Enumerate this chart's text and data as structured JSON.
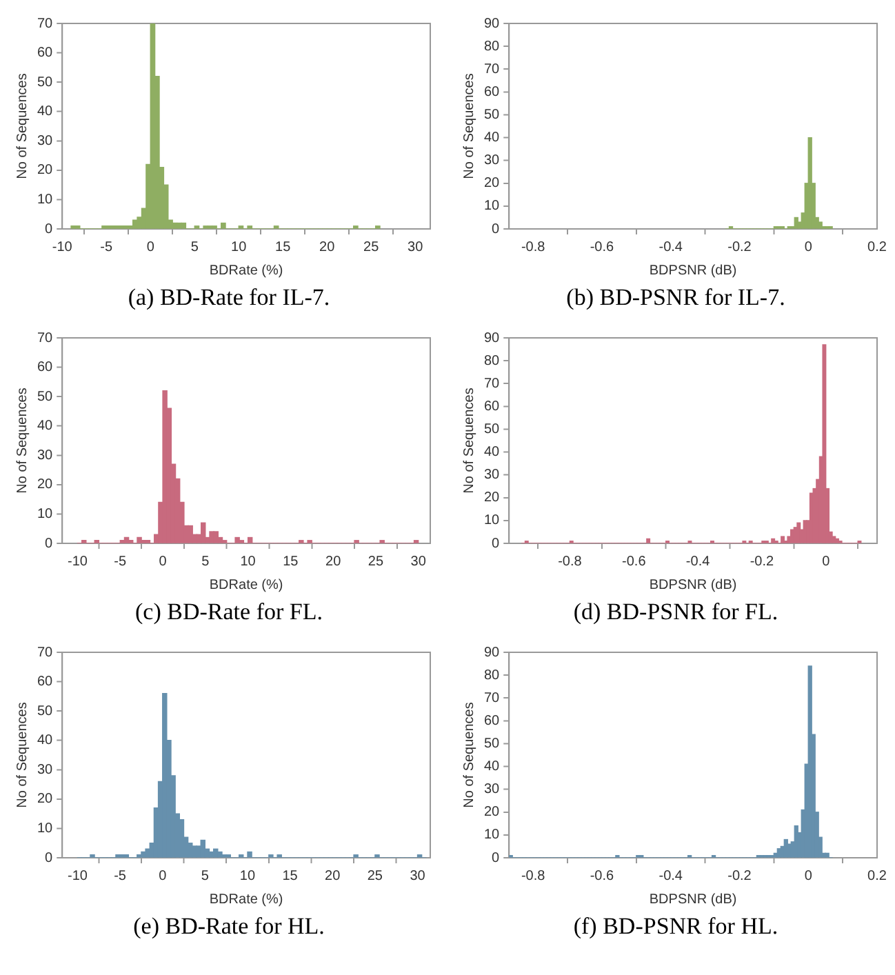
{
  "chart_data": [
    {
      "type": "histogram",
      "title": "(a) BD-Rate for IL-7.",
      "xlabel": "BDRate (%)",
      "ylabel": "No of Sequences",
      "color": "#8fae62",
      "grid": false,
      "xlim": [
        -10,
        31.7
      ],
      "xticks": [
        -10,
        -5,
        0,
        5,
        10,
        15,
        20,
        25,
        30
      ],
      "ylim": [
        0,
        70
      ],
      "yticks": [
        0,
        10,
        20,
        30,
        40,
        50,
        60,
        70
      ],
      "bins": [
        -9,
        -8.5,
        -8,
        -7.5,
        -7,
        -6.5,
        -6,
        -5.5,
        -5,
        -4.5,
        -4,
        -3.5,
        -3,
        -2.5,
        -2,
        -1.5,
        -1,
        -0.5,
        0,
        0.5,
        1,
        1.5,
        2,
        2.5,
        3,
        3.5,
        4,
        4.5,
        5,
        5.5,
        6,
        6.5,
        7,
        7.5,
        8,
        8.5,
        9,
        9.5,
        10,
        10.5,
        11,
        11.5,
        12,
        12.5,
        13,
        13.5,
        14,
        14.5,
        15,
        15.5,
        16,
        16.5,
        17,
        17.5,
        18,
        18.5,
        19,
        19.5,
        20,
        20.5,
        21,
        21.5,
        22,
        22.5,
        23,
        23.5,
        24,
        24.5,
        25,
        25.5,
        26
      ],
      "values": [
        1,
        1,
        0,
        0,
        0,
        0,
        0,
        1,
        1,
        1,
        1,
        1,
        1,
        1,
        3,
        4,
        7,
        22,
        70,
        52,
        21,
        15,
        3,
        2,
        2,
        2,
        0,
        0,
        1,
        0,
        1,
        1,
        1,
        0,
        2,
        0,
        0,
        0,
        1,
        0,
        1,
        0,
        0,
        0,
        0,
        0,
        1,
        0,
        0,
        0,
        0,
        0,
        0,
        0,
        0,
        0,
        0,
        0,
        0,
        0,
        0,
        0,
        0,
        0,
        1,
        0,
        0,
        0,
        0,
        1
      ]
    },
    {
      "type": "histogram",
      "title": "(b) BD-PSNR for IL-7.",
      "xlabel": "BDPSNR (dB)",
      "ylabel": "No of Sequences",
      "color": "#8fae62",
      "grid": false,
      "xlim": [
        -0.87,
        0.2
      ],
      "xticks": [
        -0.8,
        -0.6,
        -0.4,
        -0.2,
        0,
        0.2
      ],
      "ylim": [
        0,
        90
      ],
      "yticks": [
        0,
        10,
        20,
        30,
        40,
        50,
        60,
        70,
        80,
        90
      ],
      "bins": [
        -0.24,
        -0.23,
        -0.22,
        -0.21,
        -0.2,
        -0.19,
        -0.18,
        -0.17,
        -0.16,
        -0.15,
        -0.14,
        -0.13,
        -0.12,
        -0.11,
        -0.1,
        -0.09,
        -0.08,
        -0.07,
        -0.06,
        -0.05,
        -0.04,
        -0.03,
        -0.02,
        -0.01,
        0,
        0.01,
        0.02,
        0.03,
        0.04,
        0.05,
        0.06,
        0.07
      ],
      "values": [
        0,
        1,
        0,
        0,
        0,
        0,
        0,
        0,
        0,
        0,
        0,
        0,
        0,
        0,
        1,
        1,
        1,
        0,
        1,
        1,
        5,
        3,
        7,
        20,
        40,
        20,
        5,
        3,
        1,
        1,
        1
      ]
    },
    {
      "type": "histogram",
      "title": "(c) BD-Rate for FL.",
      "xlabel": "BDRate (%)",
      "ylabel": "No of Sequences",
      "color": "#c86a7e",
      "grid": false,
      "xlim": [
        -11.8,
        31.4
      ],
      "xticks": [
        -10,
        -5,
        0,
        5,
        10,
        15,
        20,
        25,
        30
      ],
      "ylim": [
        0,
        70
      ],
      "yticks": [
        0,
        10,
        20,
        30,
        40,
        50,
        60,
        70
      ],
      "bins": [
        -10,
        -9.5,
        -9,
        -8.5,
        -8,
        -7.5,
        -7,
        -6.5,
        -6,
        -5.5,
        -5,
        -4.5,
        -4,
        -3.5,
        -3,
        -2.5,
        -2,
        -1.5,
        -1,
        -0.5,
        0,
        0.5,
        1,
        1.5,
        2,
        2.5,
        3,
        3.5,
        4,
        4.5,
        5,
        5.5,
        6,
        6.5,
        7,
        7.5,
        8,
        8.5,
        9,
        9.5,
        10,
        10.5,
        11,
        11.5,
        12,
        12.5,
        13,
        13.5,
        14,
        14.5,
        15,
        15.5,
        16,
        16.5,
        17,
        17.5,
        18,
        18.5,
        19,
        19.5,
        20,
        20.5,
        21,
        21.5,
        22,
        22.5,
        23,
        23.5,
        24,
        24.5,
        25,
        25.5,
        26,
        26.5,
        27,
        27.5,
        28,
        28.5,
        29,
        29.5,
        30
      ],
      "values": [
        0,
        1,
        0,
        0,
        1,
        0,
        0,
        0,
        0,
        0,
        1,
        2,
        1,
        0,
        2,
        1,
        1,
        0,
        3,
        14,
        52,
        46,
        27,
        22,
        14,
        6,
        6,
        3,
        3,
        7,
        2,
        4,
        4,
        2,
        1,
        0,
        0,
        2,
        1,
        0,
        2,
        0,
        0,
        0,
        0,
        0,
        0,
        0,
        0,
        0,
        0,
        0,
        1,
        0,
        1,
        0,
        0,
        0,
        0,
        0,
        0,
        0,
        0,
        0,
        0,
        1,
        0,
        0,
        0,
        0,
        0,
        1,
        0,
        0,
        0,
        0,
        0,
        0,
        0,
        1
      ]
    },
    {
      "type": "histogram",
      "title": "(d) BD-PSNR for FL.",
      "xlabel": "BDPSNR (dB)",
      "ylabel": "No of Sequences",
      "color": "#c86a7e",
      "grid": false,
      "xlim": [
        -0.99,
        0.16
      ],
      "xticks": [
        -0.8,
        -0.6,
        -0.4,
        -0.2,
        0
      ],
      "ylim": [
        0,
        90
      ],
      "yticks": [
        0,
        10,
        20,
        30,
        40,
        50,
        60,
        70,
        80,
        90
      ],
      "bins": [
        -0.95,
        -0.94,
        -0.93,
        -0.92,
        -0.91,
        -0.9,
        -0.89,
        -0.88,
        -0.87,
        -0.86,
        -0.85,
        -0.84,
        -0.83,
        -0.82,
        -0.81,
        -0.8,
        -0.79,
        -0.78,
        -0.77,
        -0.76,
        -0.75,
        -0.74,
        -0.73,
        -0.72,
        -0.71,
        -0.7,
        -0.69,
        -0.68,
        -0.67,
        -0.66,
        -0.65,
        -0.64,
        -0.63,
        -0.62,
        -0.61,
        -0.6,
        -0.59,
        -0.58,
        -0.57,
        -0.56,
        -0.55,
        -0.54,
        -0.53,
        -0.52,
        -0.51,
        -0.5,
        -0.49,
        -0.48,
        -0.47,
        -0.46,
        -0.45,
        -0.44,
        -0.43,
        -0.42,
        -0.41,
        -0.4,
        -0.39,
        -0.38,
        -0.37,
        -0.36,
        -0.35,
        -0.34,
        -0.33,
        -0.32,
        -0.31,
        -0.3,
        -0.29,
        -0.28,
        -0.27,
        -0.26,
        -0.25,
        -0.24,
        -0.23,
        -0.22,
        -0.21,
        -0.2,
        -0.19,
        -0.18,
        -0.17,
        -0.16,
        -0.15,
        -0.14,
        -0.13,
        -0.12,
        -0.11,
        -0.1,
        -0.09,
        -0.08,
        -0.07,
        -0.06,
        -0.05,
        -0.04,
        -0.03,
        -0.02,
        -0.01,
        0,
        0.01,
        0.02,
        0.03,
        0.04,
        0.05,
        0.06,
        0.07,
        0.08,
        0.09,
        0.1,
        0.11
      ],
      "values": [
        0,
        1,
        0,
        0,
        0,
        0,
        0,
        0,
        0,
        0,
        0,
        0,
        0,
        0,
        0,
        1,
        0,
        0,
        0,
        0,
        0,
        0,
        0,
        0,
        0,
        0,
        0,
        0,
        0,
        0,
        0,
        0,
        0,
        0,
        0,
        0,
        0,
        0,
        0,
        2,
        0,
        0,
        0,
        0,
        0,
        1,
        0,
        0,
        0,
        0,
        0,
        0,
        1,
        0,
        0,
        0,
        0,
        0,
        0,
        1,
        0,
        0,
        0,
        0,
        0,
        0,
        0,
        0,
        0,
        1,
        0,
        1,
        0,
        0,
        0,
        1,
        1,
        0,
        2,
        1,
        0,
        3,
        1,
        3,
        6,
        7,
        9,
        6,
        10,
        10,
        22,
        24,
        28,
        38,
        87,
        24,
        5,
        3,
        2,
        1,
        0,
        0,
        0,
        0,
        0,
        1
      ]
    },
    {
      "type": "histogram",
      "title": "(e) BD-Rate for HL.",
      "xlabel": "BDRate (%)",
      "ylabel": "No of Sequences",
      "color": "#6690ad",
      "grid": false,
      "xlim": [
        -11.8,
        31.5
      ],
      "xticks": [
        -10,
        -5,
        0,
        5,
        10,
        15,
        20,
        25,
        30
      ],
      "ylim": [
        0,
        70
      ],
      "yticks": [
        0,
        10,
        20,
        30,
        40,
        50,
        60,
        70
      ],
      "bins": [
        -10,
        -9.5,
        -9,
        -8.5,
        -8,
        -7.5,
        -7,
        -6.5,
        -6,
        -5.5,
        -5,
        -4.5,
        -4,
        -3.5,
        -3,
        -2.5,
        -2,
        -1.5,
        -1,
        -0.5,
        0,
        0.5,
        1,
        1.5,
        2,
        2.5,
        3,
        3.5,
        4,
        4.5,
        5,
        5.5,
        6,
        6.5,
        7,
        7.5,
        8,
        8.5,
        9,
        9.5,
        10,
        10.5,
        11,
        11.5,
        12,
        12.5,
        13,
        13.5,
        14,
        14.5,
        15,
        15.5,
        16,
        16.5,
        17,
        17.5,
        18,
        18.5,
        19,
        19.5,
        20,
        20.5,
        21,
        21.5,
        22,
        22.5,
        23,
        23.5,
        24,
        24.5,
        25,
        25.5,
        26,
        26.5,
        27,
        27.5,
        28,
        28.5,
        29,
        29.5,
        30,
        30.5,
        31
      ],
      "values": [
        0,
        0,
        0,
        1,
        0,
        0,
        0,
        0,
        0,
        1,
        1,
        1,
        0,
        0,
        1,
        2,
        3,
        5,
        17,
        26,
        56,
        40,
        28,
        15,
        13,
        7,
        5,
        4,
        4,
        6,
        3,
        2,
        3,
        2,
        1,
        1,
        0,
        0,
        1,
        0,
        2,
        0,
        0,
        0,
        0,
        1,
        0,
        1,
        0,
        0,
        0,
        0,
        0,
        0,
        0,
        0,
        0,
        0,
        0,
        0,
        0,
        0,
        0,
        0,
        0,
        1,
        0,
        0,
        0,
        0,
        1,
        0,
        0,
        0,
        0,
        0,
        0,
        0,
        0,
        0,
        1,
        0
      ]
    },
    {
      "type": "histogram",
      "title": "(f) BD-PSNR for HL.",
      "xlabel": "BDPSNR (dB)",
      "ylabel": "No of Sequences",
      "color": "#6690ad",
      "grid": false,
      "xlim": [
        -0.87,
        0.2
      ],
      "xticks": [
        -0.8,
        -0.6,
        -0.4,
        -0.2,
        0,
        0.2
      ],
      "ylim": [
        0,
        90
      ],
      "yticks": [
        0,
        10,
        20,
        30,
        40,
        50,
        60,
        70,
        80,
        90
      ],
      "bins": [
        -0.87,
        -0.86,
        -0.85,
        -0.84,
        -0.83,
        -0.82,
        -0.81,
        -0.8,
        -0.79,
        -0.78,
        -0.77,
        -0.76,
        -0.75,
        -0.74,
        -0.73,
        -0.72,
        -0.71,
        -0.7,
        -0.69,
        -0.68,
        -0.67,
        -0.66,
        -0.65,
        -0.64,
        -0.63,
        -0.62,
        -0.61,
        -0.6,
        -0.59,
        -0.58,
        -0.57,
        -0.56,
        -0.55,
        -0.54,
        -0.53,
        -0.52,
        -0.51,
        -0.5,
        -0.49,
        -0.48,
        -0.47,
        -0.46,
        -0.45,
        -0.44,
        -0.43,
        -0.42,
        -0.41,
        -0.4,
        -0.39,
        -0.38,
        -0.37,
        -0.36,
        -0.35,
        -0.34,
        -0.33,
        -0.32,
        -0.31,
        -0.3,
        -0.29,
        -0.28,
        -0.27,
        -0.26,
        -0.25,
        -0.24,
        -0.23,
        -0.22,
        -0.21,
        -0.2,
        -0.19,
        -0.18,
        -0.17,
        -0.16,
        -0.15,
        -0.14,
        -0.13,
        -0.12,
        -0.11,
        -0.1,
        -0.09,
        -0.08,
        -0.07,
        -0.06,
        -0.05,
        -0.04,
        -0.03,
        -0.02,
        -0.01,
        0,
        0.01,
        0.02,
        0.03,
        0.04,
        0.05,
        0.06,
        0.07
      ],
      "values": [
        1,
        0,
        0,
        0,
        0,
        0,
        0,
        0,
        0,
        0,
        0,
        0,
        0,
        0,
        0,
        0,
        0,
        0,
        0,
        0,
        0,
        0,
        0,
        0,
        0,
        0,
        0,
        0,
        0,
        0,
        0,
        1,
        0,
        0,
        0,
        0,
        0,
        1,
        1,
        0,
        0,
        0,
        0,
        0,
        0,
        0,
        0,
        0,
        0,
        0,
        0,
        0,
        1,
        0,
        0,
        0,
        0,
        0,
        0,
        1,
        0,
        0,
        0,
        0,
        0,
        0,
        0,
        0,
        0,
        0,
        0,
        0,
        1,
        1,
        1,
        1,
        1,
        2,
        4,
        5,
        8,
        6,
        7,
        14,
        11,
        21,
        41,
        84,
        54,
        20,
        9,
        2,
        2,
        0
      ]
    }
  ]
}
